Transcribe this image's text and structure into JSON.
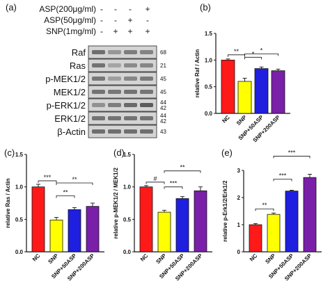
{
  "panels": {
    "a": "(a)",
    "b": "(b)",
    "c": "(c)",
    "d": "(d)",
    "e": "(e)"
  },
  "blot": {
    "conditions": [
      {
        "label": "ASP(200μg/ml)",
        "marks": [
          "-",
          "-",
          "-",
          "+"
        ]
      },
      {
        "label": "ASP(50μg/ml)",
        "marks": [
          "-",
          "-",
          "+",
          "-"
        ]
      },
      {
        "label": "SNP(1mg/ml)",
        "marks": [
          "-",
          "+",
          "+",
          "+"
        ]
      }
    ],
    "rows": [
      {
        "protein": "Raf",
        "kda": "68",
        "intensities": [
          0.62,
          0.42,
          0.55,
          0.52
        ]
      },
      {
        "protein": "Ras",
        "kda": "21",
        "intensities": [
          0.6,
          0.35,
          0.48,
          0.5
        ]
      },
      {
        "protein": "p-MEK1/2",
        "kda": "45",
        "intensities": [
          0.58,
          0.38,
          0.5,
          0.56
        ]
      },
      {
        "protein": "MEK1/2",
        "kda": "45",
        "intensities": [
          0.6,
          0.58,
          0.6,
          0.59
        ]
      },
      {
        "protein": "p-ERK1/2",
        "kda": "44\n42",
        "intensities": [
          0.45,
          0.55,
          0.65,
          0.72
        ]
      },
      {
        "protein": "ERK1/2",
        "kda": "44\n42",
        "intensities": [
          0.6,
          0.6,
          0.6,
          0.6
        ]
      },
      {
        "protein": "β-Actin",
        "kda": "43",
        "intensities": [
          0.62,
          0.62,
          0.62,
          0.62
        ]
      }
    ]
  },
  "chart_data": [
    {
      "panel": "b",
      "type": "bar",
      "categories": [
        "NC",
        "SNP",
        "SNP+50ASP",
        "SNP+200ASP"
      ],
      "values": [
        1.0,
        0.6,
        0.84,
        0.8
      ],
      "errors": [
        0.02,
        0.06,
        0.03,
        0.03
      ],
      "colors": [
        "#ff1a1a",
        "#ffff00",
        "#1f1fe0",
        "#7a1fa8"
      ],
      "ylabel": "relative Raf / Actin",
      "ylim": [
        0,
        1.5
      ],
      "yticks": [
        "0.0",
        "0.5",
        "1.0",
        "1.5"
      ],
      "significance": [
        {
          "from": 0,
          "to": 1,
          "label": "**"
        },
        {
          "from": 1,
          "to": 2,
          "label": "*"
        },
        {
          "from": 1,
          "to": 3,
          "label": "*"
        }
      ]
    },
    {
      "panel": "c",
      "type": "bar",
      "categories": [
        "NC",
        "SNP",
        "SNP+50ASP",
        "SNP+200ASP"
      ],
      "values": [
        1.0,
        0.49,
        0.65,
        0.7
      ],
      "errors": [
        0.04,
        0.04,
        0.03,
        0.05
      ],
      "colors": [
        "#ff1a1a",
        "#ffff00",
        "#1f1fe0",
        "#7a1fa8"
      ],
      "ylabel": "relative Ras / Actin",
      "ylim": [
        0,
        1.5
      ],
      "yticks": [
        "0.0",
        "0.5",
        "1.0",
        "1.5"
      ],
      "significance": [
        {
          "from": 0,
          "to": 1,
          "label": "***"
        },
        {
          "from": 1,
          "to": 2,
          "label": "**"
        },
        {
          "from": 1,
          "to": 3,
          "label": "**"
        }
      ]
    },
    {
      "panel": "d",
      "type": "bar",
      "categories": [
        "NC",
        "SNP",
        "SNP+50ASP",
        "SNP+200ASP"
      ],
      "values": [
        1.0,
        0.61,
        0.82,
        0.94
      ],
      "errors": [
        0.02,
        0.03,
        0.03,
        0.06
      ],
      "colors": [
        "#ff1a1a",
        "#ffff00",
        "#1f1fe0",
        "#7a1fa8"
      ],
      "ylabel": "relative p-MEK1/2 / MEK1/2",
      "ylim": [
        0,
        1.5
      ],
      "yticks": [
        "0.0",
        "0.5",
        "1.0",
        "1.5"
      ],
      "significance": [
        {
          "from": 0,
          "to": 1,
          "label": "#"
        },
        {
          "from": 1,
          "to": 2,
          "label": "***"
        },
        {
          "from": 1,
          "to": 3,
          "label": "**"
        }
      ]
    },
    {
      "panel": "e",
      "type": "bar",
      "categories": [
        "NC",
        "SNP",
        "SNP+50ASP",
        "SNP+200ASP"
      ],
      "values": [
        1.0,
        1.38,
        2.24,
        2.74
      ],
      "errors": [
        0.04,
        0.05,
        0.03,
        0.12
      ],
      "colors": [
        "#ff1a1a",
        "#ffff00",
        "#1f1fe0",
        "#7a1fa8"
      ],
      "ylabel": "relative p-Erk1/2/Erk1/2",
      "ylim": [
        0,
        3
      ],
      "yticks": [
        "0",
        "1",
        "2",
        "3"
      ],
      "significance": [
        {
          "from": 0,
          "to": 1,
          "label": "**"
        },
        {
          "from": 1,
          "to": 2,
          "label": "***"
        },
        {
          "from": 1,
          "to": 3,
          "label": "***"
        }
      ]
    }
  ]
}
